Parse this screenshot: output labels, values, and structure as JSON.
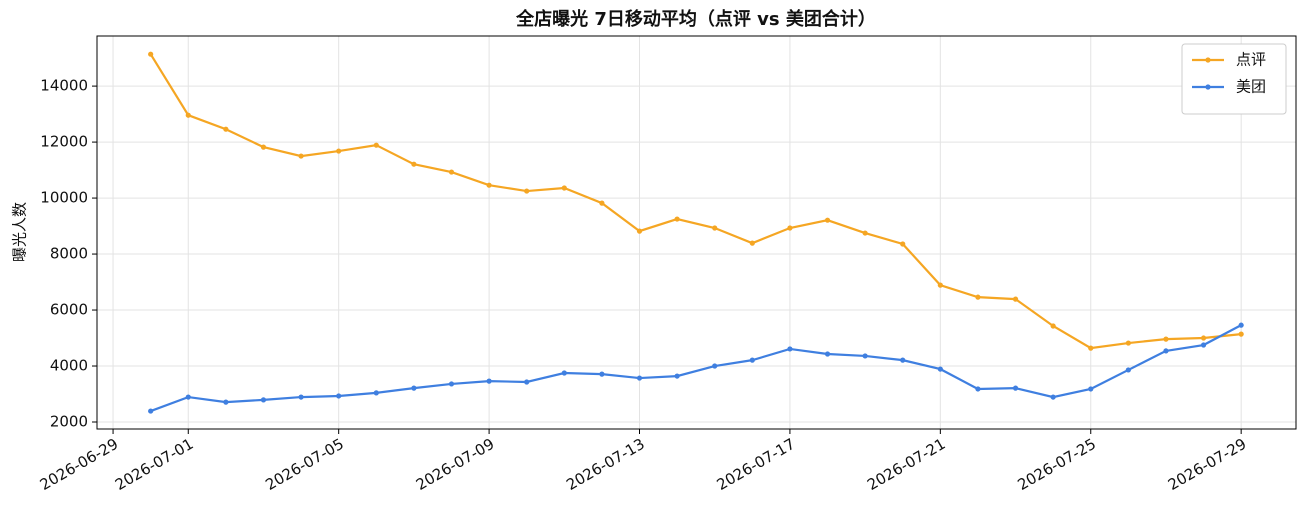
{
  "chart_data": {
    "type": "line",
    "title": "全店曝光 7日移动平均（点评 vs 美团合计）",
    "y_label": "曝光人数",
    "x": [
      "2026-06-30",
      "2026-07-01",
      "2026-07-02",
      "2026-07-03",
      "2026-07-04",
      "2026-07-05",
      "2026-07-06",
      "2026-07-07",
      "2026-07-08",
      "2026-07-09",
      "2026-07-10",
      "2026-07-11",
      "2026-07-12",
      "2026-07-13",
      "2026-07-14",
      "2026-07-15",
      "2026-07-16",
      "2026-07-17",
      "2026-07-18",
      "2026-07-19",
      "2026-07-20",
      "2026-07-21",
      "2026-07-22",
      "2026-07-23",
      "2026-07-24",
      "2026-07-25",
      "2026-07-26",
      "2026-07-27",
      "2026-07-28",
      "2026-07-29"
    ],
    "series": [
      {
        "name": "点评",
        "color": "#f5a623",
        "values": [
          15140,
          12960,
          12460,
          11820,
          11500,
          11680,
          11890,
          11210,
          10930,
          10460,
          10250,
          10360,
          9820,
          8820,
          9250,
          8930,
          8390,
          8930,
          9210,
          8750,
          8360,
          6890,
          6460,
          6390,
          5430,
          4640,
          4820,
          4960,
          5000,
          5140
        ]
      },
      {
        "name": "美团",
        "color": "#3f7fe0",
        "values": [
          2390,
          2890,
          2710,
          2790,
          2890,
          2930,
          3040,
          3210,
          3360,
          3460,
          3430,
          3750,
          3710,
          3570,
          3640,
          4000,
          4210,
          4610,
          4430,
          4360,
          4210,
          3890,
          3180,
          3210,
          2890,
          3180,
          3860,
          4540,
          4750,
          5460
        ]
      }
    ],
    "xlim": [
      "2026-06-28T13:45",
      "2026-07-30T11:00"
    ],
    "xticks": [
      "2026-06-29",
      "2026-07-01",
      "2026-07-05",
      "2026-07-09",
      "2026-07-13",
      "2026-07-17",
      "2026-07-21",
      "2026-07-25",
      "2026-07-29"
    ],
    "ylim": [
      1750,
      15790
    ],
    "yticks": [
      2000,
      4000,
      6000,
      8000,
      10000,
      12000,
      14000
    ],
    "grid": true,
    "legend": "upper-right"
  }
}
